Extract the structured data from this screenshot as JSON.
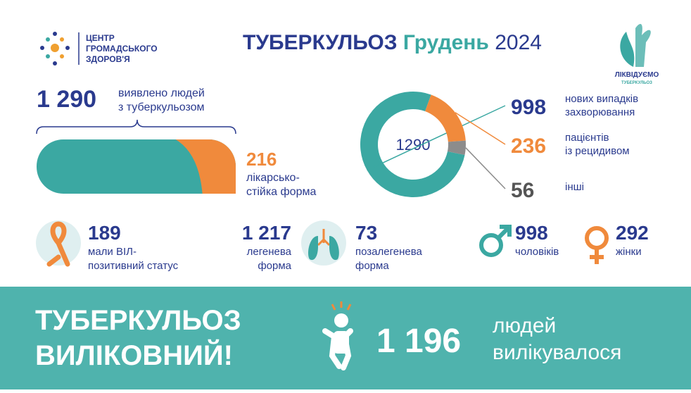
{
  "header": {
    "org": [
      "ЦЕНТР",
      "ГРОМАДСЬКОГО",
      "ЗДОРОВ'Я"
    ],
    "title_part1": "ТУБЕРКУЛЬОЗ",
    "title_part2": "Грудень",
    "title_part3": "2024",
    "campaign": [
      "ЛІКВІДУЄМО",
      "ТУБЕРКУЛЬОЗ"
    ]
  },
  "detected": {
    "value": "1 290",
    "label": [
      "виявлено людей",
      "з туберкульозом"
    ]
  },
  "resistant": {
    "value": 216,
    "label": [
      "лікарсько-",
      "стійка форма"
    ]
  },
  "donut": {
    "total": 1290,
    "segments": [
      {
        "value": 998,
        "label": [
          "нових випадків",
          "захворювання"
        ],
        "color": "#3ba8a2"
      },
      {
        "value": 236,
        "label": [
          "пацієнтів",
          "із рецидивом"
        ],
        "color": "#f08a3c"
      },
      {
        "value": 56,
        "label": [
          "інші"
        ],
        "color": "#8c8c8c"
      }
    ]
  },
  "stats": [
    {
      "value": 189,
      "label": [
        "мали ВІЛ-",
        "позитивний статус"
      ]
    },
    {
      "value": "1 217",
      "label": [
        "легенева",
        "форма"
      ]
    },
    {
      "value": 73,
      "label": [
        "позалегенева",
        "форма"
      ]
    },
    {
      "value": 998,
      "label": [
        "чоловіків"
      ]
    },
    {
      "value": 292,
      "label": [
        "жінки"
      ]
    }
  ],
  "footer": {
    "slogan": [
      "ТУБЕРКУЛЬОЗ",
      "ВИЛІКОВНИЙ!"
    ],
    "value": "1 196",
    "label": [
      "людей",
      "вилікувалося"
    ]
  }
}
